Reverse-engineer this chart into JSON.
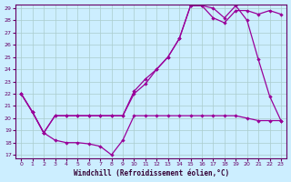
{
  "xlabel": "Windchill (Refroidissement éolien,°C)",
  "bg_color": "#cceeff",
  "grid_color": "#aacccc",
  "line_color": "#990099",
  "xlim": [
    -0.5,
    23.5
  ],
  "ylim": [
    17,
    29
  ],
  "yticks": [
    17,
    18,
    19,
    20,
    21,
    22,
    23,
    24,
    25,
    26,
    27,
    28,
    29
  ],
  "xticks": [
    0,
    1,
    2,
    3,
    4,
    5,
    6,
    7,
    8,
    9,
    10,
    11,
    12,
    13,
    14,
    15,
    16,
    17,
    18,
    19,
    20,
    21,
    22,
    23
  ],
  "line1_x": [
    0,
    1,
    2,
    3,
    4,
    5,
    6,
    7,
    8,
    9,
    10,
    11,
    12,
    13,
    14,
    15,
    16,
    17,
    18,
    19,
    20,
    21,
    22,
    23
  ],
  "line1_y": [
    22,
    20.5,
    18.8,
    18.2,
    18.0,
    18.0,
    17.9,
    17.7,
    17.0,
    18.2,
    20.2,
    20.2,
    20.2,
    20.2,
    20.2,
    20.2,
    20.2,
    20.2,
    20.2,
    20.2,
    20.0,
    19.8,
    19.8,
    19.8
  ],
  "line2_x": [
    0,
    1,
    2,
    3,
    4,
    5,
    6,
    7,
    8,
    9,
    10,
    11,
    12,
    13,
    14,
    15,
    16,
    17,
    18,
    19,
    20,
    21,
    22,
    23
  ],
  "line2_y": [
    22,
    20.5,
    18.8,
    20.2,
    20.2,
    20.2,
    20.2,
    20.2,
    20.2,
    20.2,
    22.0,
    22.8,
    24.0,
    25.0,
    26.5,
    29.2,
    29.2,
    29.0,
    28.2,
    29.2,
    28.0,
    24.8,
    21.8,
    19.8
  ],
  "line3_x": [
    0,
    1,
    2,
    3,
    4,
    5,
    6,
    7,
    8,
    9,
    10,
    11,
    12,
    13,
    14,
    15,
    16,
    17,
    18,
    19,
    20,
    21,
    22,
    23
  ],
  "line3_y": [
    22,
    20.5,
    18.8,
    20.2,
    20.2,
    20.2,
    20.2,
    20.2,
    20.2,
    20.2,
    22.2,
    23.2,
    24.0,
    25.0,
    26.5,
    29.2,
    29.2,
    28.2,
    27.8,
    28.8,
    28.8,
    28.5,
    28.8,
    28.5
  ]
}
